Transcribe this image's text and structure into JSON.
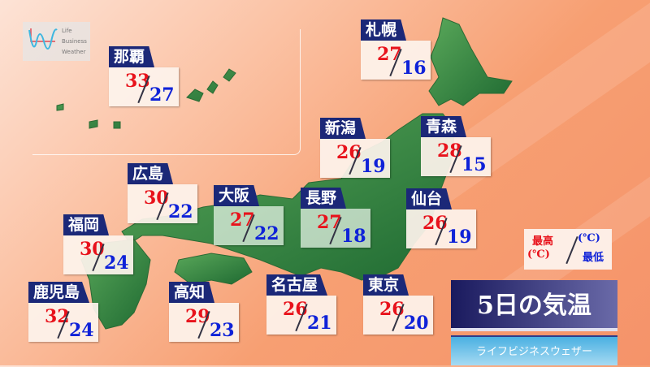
{
  "logo": {
    "lines": [
      "Life",
      "Business",
      "Weather"
    ]
  },
  "cities": [
    {
      "name": "那覇",
      "high": "33",
      "low": "27"
    },
    {
      "name": "札幌",
      "high": "27",
      "low": "16"
    },
    {
      "name": "新潟",
      "high": "26",
      "low": "19"
    },
    {
      "name": "青森",
      "high": "28",
      "low": "15"
    },
    {
      "name": "広島",
      "high": "30",
      "low": "22"
    },
    {
      "name": "大阪",
      "high": "27",
      "low": "22"
    },
    {
      "name": "長野",
      "high": "27",
      "low": "18"
    },
    {
      "name": "仙台",
      "high": "26",
      "low": "19"
    },
    {
      "name": "福岡",
      "high": "30",
      "low": "24"
    },
    {
      "name": "鹿児島",
      "high": "32",
      "low": "24"
    },
    {
      "name": "高知",
      "high": "29",
      "low": "23"
    },
    {
      "name": "名古屋",
      "high": "26",
      "low": "21"
    },
    {
      "name": "東京",
      "high": "26",
      "low": "20"
    }
  ],
  "legend": {
    "high_label": "最高",
    "high_unit": "(℃)",
    "low_unit": "(℃)",
    "low_label": "最低"
  },
  "title": "5日の気温",
  "subtitle": "ライフビジネスウェザー",
  "colors": {
    "high": "#e8121b",
    "low": "#0f22d8",
    "tag": "#1b2878",
    "land": "#3d8f45"
  }
}
